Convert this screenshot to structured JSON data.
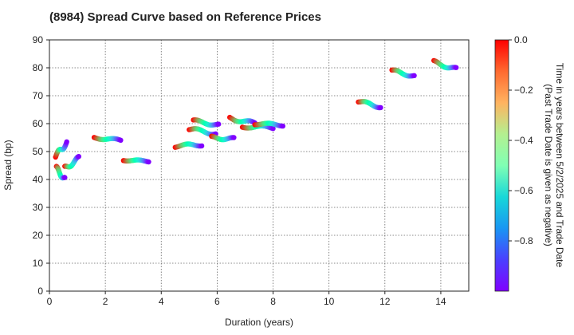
{
  "chart_data": {
    "type": "scatter",
    "title": "(8984)   Spread Curve based on Reference Prices",
    "xlabel": "Duration (years)",
    "ylabel": "Spread (bp)",
    "xlim": [
      0,
      15
    ],
    "ylim": [
      0,
      90
    ],
    "xticks": [
      0,
      2,
      4,
      6,
      8,
      10,
      12,
      14
    ],
    "yticks": [
      0,
      10,
      20,
      30,
      40,
      50,
      60,
      70,
      80,
      90
    ],
    "grid": true,
    "colorbar": {
      "label_line1": "Time in years between 5/2/2025 and Trade Date",
      "label_line2": "(Past Trade Date is given as negative)",
      "range": [
        -1.0,
        0.0
      ],
      "ticks": [
        0.0,
        -0.2,
        -0.4,
        -0.6,
        -0.8
      ],
      "tick_labels": [
        "0.0",
        "−0.2",
        "−0.4",
        "−0.6",
        "−0.8"
      ],
      "colormap": "rainbow"
    },
    "clusters": [
      {
        "name": "bond-1a",
        "x_start": 0.22,
        "x_end": 0.62,
        "y_start": 48.0,
        "y_end": 53.5,
        "wave": 1.0
      },
      {
        "name": "bond-1b",
        "x_start": 0.25,
        "x_end": 0.55,
        "y_start": 44.0,
        "y_end": 40.0,
        "wave": 0.8
      },
      {
        "name": "bond-1c",
        "x_start": 0.55,
        "x_end": 1.05,
        "y_start": 44.0,
        "y_end": 47.5,
        "wave": 0.8
      },
      {
        "name": "bond-2",
        "x_start": 1.6,
        "x_end": 2.55,
        "y_start": 55.0,
        "y_end": 54.0,
        "wave": 0.4
      },
      {
        "name": "bond-3",
        "x_start": 2.65,
        "x_end": 3.55,
        "y_start": 47.0,
        "y_end": 46.5,
        "wave": 0.3
      },
      {
        "name": "bond-4",
        "x_start": 4.5,
        "x_end": 5.45,
        "y_start": 52.0,
        "y_end": 52.5,
        "wave": 0.5
      },
      {
        "name": "bond-5a",
        "x_start": 5.0,
        "x_end": 5.95,
        "y_start": 58.0,
        "y_end": 56.5,
        "wave": 0.6
      },
      {
        "name": "bond-5b",
        "x_start": 5.15,
        "x_end": 6.05,
        "y_start": 61.0,
        "y_end": 59.5,
        "wave": 0.5
      },
      {
        "name": "bond-6",
        "x_start": 5.8,
        "x_end": 6.6,
        "y_start": 55.0,
        "y_end": 54.5,
        "wave": 0.5
      },
      {
        "name": "bond-7",
        "x_start": 6.45,
        "x_end": 7.35,
        "y_start": 62.0,
        "y_end": 60.0,
        "wave": 0.6
      },
      {
        "name": "bond-8",
        "x_start": 6.9,
        "x_end": 8.0,
        "y_start": 59.0,
        "y_end": 58.5,
        "wave": 0.5
      },
      {
        "name": "bond-9",
        "x_start": 7.35,
        "x_end": 8.35,
        "y_start": 60.0,
        "y_end": 59.5,
        "wave": 0.4
      },
      {
        "name": "bond-10",
        "x_start": 11.05,
        "x_end": 11.85,
        "y_start": 68.0,
        "y_end": 66.0,
        "wave": 0.5
      },
      {
        "name": "bond-11",
        "x_start": 12.25,
        "x_end": 13.05,
        "y_start": 79.0,
        "y_end": 77.0,
        "wave": 0.5
      },
      {
        "name": "bond-12",
        "x_start": 13.75,
        "x_end": 14.55,
        "y_start": 82.0,
        "y_end": 79.5,
        "wave": 0.6
      }
    ],
    "points_per_cluster": 26
  }
}
